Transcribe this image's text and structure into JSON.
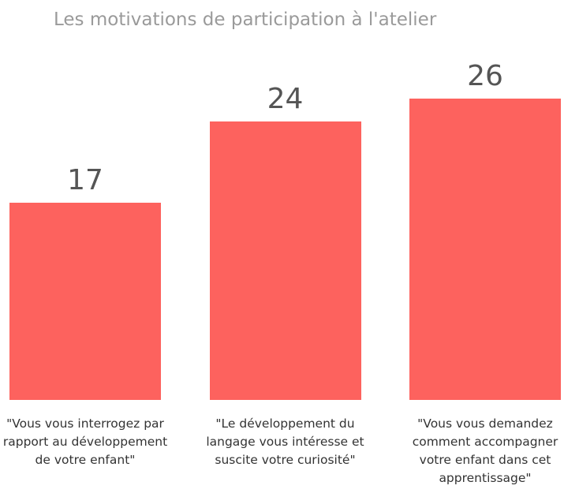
{
  "chart_data": {
    "type": "bar",
    "title": "Les motivations de participation à l'atelier",
    "categories": [
      "\"Vous vous interrogez par rapport au développement de votre enfant\"",
      "\"Le développement du langage vous intéresse et suscite votre curiosité\"",
      "\"Vous vous demandez comment accompagner votre enfant dans cet apprentissage\""
    ],
    "values": [
      17,
      24,
      26
    ],
    "color": "#fd625e"
  }
}
